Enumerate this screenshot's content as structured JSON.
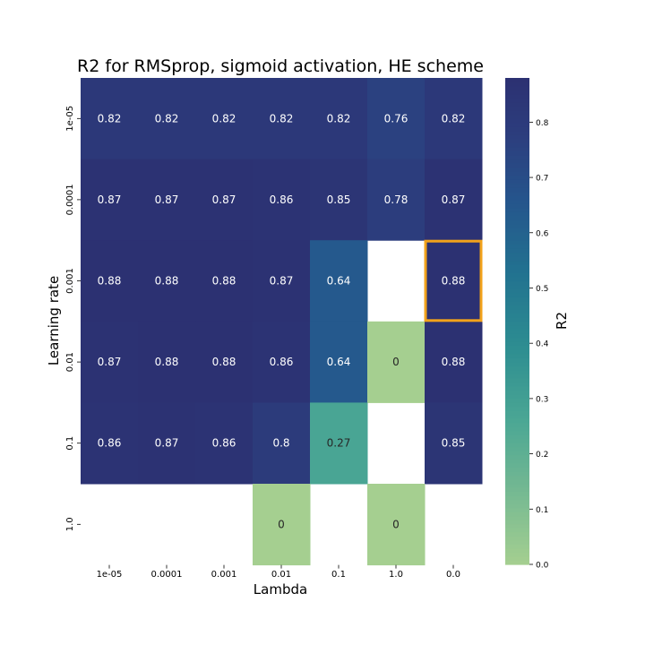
{
  "chart_data": {
    "type": "heatmap",
    "title": "R2 for RMSprop, sigmoid activation, HE scheme",
    "xlabel": "Lambda",
    "ylabel": "Learning rate",
    "x_categories": [
      "1e-05",
      "0.0001",
      "0.001",
      "0.01",
      "0.1",
      "1.0",
      "0.0"
    ],
    "y_categories": [
      "1e-05",
      "0.0001",
      "0.001",
      "0.01",
      "0.1",
      "1.0"
    ],
    "values": [
      [
        0.82,
        0.82,
        0.82,
        0.82,
        0.82,
        0.76,
        0.82
      ],
      [
        0.87,
        0.87,
        0.87,
        0.86,
        0.85,
        0.78,
        0.87
      ],
      [
        0.88,
        0.88,
        0.88,
        0.87,
        0.64,
        null,
        0.88
      ],
      [
        0.87,
        0.88,
        0.88,
        0.86,
        0.64,
        0,
        0.88
      ],
      [
        0.86,
        0.87,
        0.86,
        0.8,
        0.27,
        null,
        0.85
      ],
      [
        null,
        null,
        null,
        0,
        null,
        0,
        null
      ]
    ],
    "highlight_cell": {
      "row": 2,
      "col": 6,
      "color": "#f2a21b"
    },
    "colorbar": {
      "label": "R2",
      "range": [
        0.0,
        0.88
      ],
      "ticks": [
        "0.0",
        "0.1",
        "0.2",
        "0.3",
        "0.4",
        "0.5",
        "0.6",
        "0.7",
        "0.8"
      ],
      "colormap": "crest",
      "low_color": "#a5cf90",
      "high_color": "#2c3172"
    }
  }
}
